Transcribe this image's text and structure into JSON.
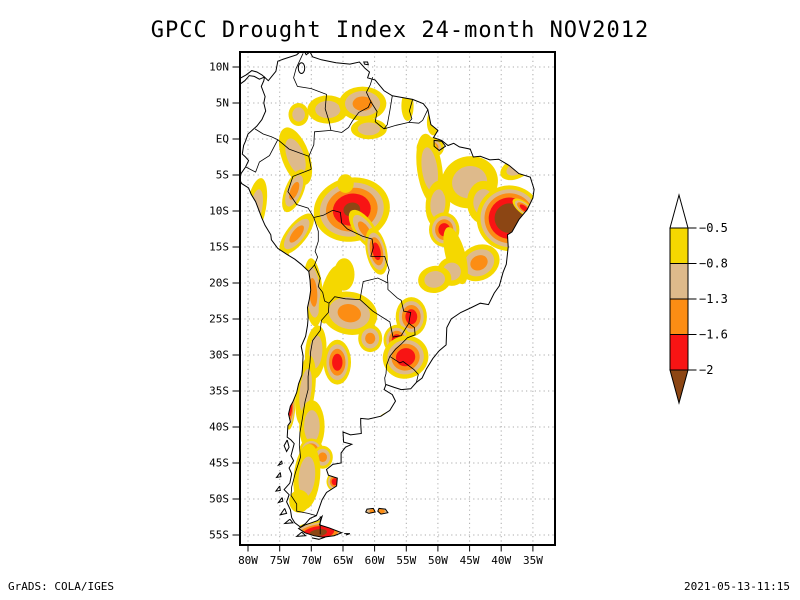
{
  "title": "GPCC Drought Index 24-month NOV2012",
  "footer": {
    "left": "GrADS: COLA/IGES",
    "right": "2021-05-13-11:15"
  },
  "chart_data": {
    "type": "heatmap",
    "subtype": "filled_contour_map",
    "title": "GPCC Drought Index 24-month NOV2012",
    "region": "South America",
    "dataset": "GPCC Drought Index",
    "accumulation": "24-month",
    "valid_date": "NOV2012",
    "lon_range_deg": [
      -81.3,
      -31.5
    ],
    "lat_range_deg": [
      -56.4,
      12.1
    ],
    "grid_interval_deg": 5,
    "grid_on": true,
    "axes": {
      "lat_ticks": [
        {
          "label": "10N",
          "deg": 10
        },
        {
          "label": "5N",
          "deg": 5
        },
        {
          "label": "EQ",
          "deg": 0
        },
        {
          "label": "5S",
          "deg": -5
        },
        {
          "label": "10S",
          "deg": -10
        },
        {
          "label": "15S",
          "deg": -15
        },
        {
          "label": "20S",
          "deg": -20
        },
        {
          "label": "25S",
          "deg": -25
        },
        {
          "label": "30S",
          "deg": -30
        },
        {
          "label": "35S",
          "deg": -35
        },
        {
          "label": "40S",
          "deg": -40
        },
        {
          "label": "45S",
          "deg": -45
        },
        {
          "label": "50S",
          "deg": -50
        },
        {
          "label": "55S",
          "deg": -55
        }
      ],
      "lon_ticks": [
        {
          "label": "80W",
          "deg": -80
        },
        {
          "label": "75W",
          "deg": -75
        },
        {
          "label": "70W",
          "deg": -70
        },
        {
          "label": "65W",
          "deg": -65
        },
        {
          "label": "60W",
          "deg": -60
        },
        {
          "label": "55W",
          "deg": -55
        },
        {
          "label": "50W",
          "deg": -50
        },
        {
          "label": "45W",
          "deg": -45
        },
        {
          "label": "40W",
          "deg": -40
        },
        {
          "label": "35W",
          "deg": -35
        }
      ]
    },
    "legend": {
      "position": "right",
      "levels": [
        -0.5,
        -0.8,
        -1.3,
        -1.6,
        -2
      ],
      "labels": [
        "−0.5",
        "−0.8",
        "−1.3",
        "−1.6",
        "−2"
      ],
      "palette": {
        "white": "#FFFFFF",
        "yellow": "#F5D800",
        "tan": "#DEBA8B",
        "orange": "#FC8D14",
        "red": "#F81414",
        "brown": "#8C4614"
      },
      "bands": [
        {
          "range": "> -0.5",
          "color": "white"
        },
        {
          "range": "-0.5 to -0.8",
          "color": "yellow"
        },
        {
          "range": "-0.8 to -1.3",
          "color": "tan"
        },
        {
          "range": "-1.3 to -1.6",
          "color": "orange"
        },
        {
          "range": "-1.6 to -2",
          "color": "red"
        },
        {
          "range": "< -2",
          "color": "brown"
        }
      ]
    },
    "features": [
      {
        "name": "colombia-east",
        "lon": -72.0,
        "lat": 3.4,
        "level": 2,
        "size": 1.6,
        "rx": 1,
        "ry": 1,
        "rot": 0
      },
      {
        "name": "venezuela-south",
        "lon": -67.4,
        "lat": 4.1,
        "level": 2,
        "size": 2.3,
        "rx": 1.4,
        "ry": 0.85,
        "rot": 0
      },
      {
        "name": "guyana-border",
        "lon": -61.9,
        "lat": 4.9,
        "level": 3,
        "size": 2.5,
        "rx": 1.5,
        "ry": 0.95,
        "rot": 0
      },
      {
        "name": "suriname",
        "lon": -54.8,
        "lat": 4.6,
        "level": 1,
        "size": 1.6,
        "rx": 0.6,
        "ry": 1.3,
        "rot": 0
      },
      {
        "name": "amapa-coast",
        "lon": -50.7,
        "lat": 2.3,
        "level": 1,
        "size": 1.5,
        "rx": 0.7,
        "ry": 1.2,
        "rot": 0
      },
      {
        "name": "roraima",
        "lon": -60.9,
        "lat": 1.4,
        "level": 2,
        "size": 1.9,
        "rx": 1.5,
        "ry": 0.75,
        "rot": 0
      },
      {
        "name": "colombia-peru-border",
        "lon": -72.5,
        "lat": -2.4,
        "level": 2,
        "size": 2.9,
        "rx": 0.75,
        "ry": 1.45,
        "rot": -20
      },
      {
        "name": "peru-coast",
        "lon": -78.7,
        "lat": -9.5,
        "level": 2,
        "size": 2.5,
        "rx": 0.62,
        "ry": 1.65,
        "rot": 10
      },
      {
        "name": "peru-andes-north",
        "lon": -72.7,
        "lat": -7.2,
        "level": 3,
        "size": 2.1,
        "rx": 0.7,
        "ry": 1.5,
        "rot": 22
      },
      {
        "name": "peru-andes-south",
        "lon": -72.3,
        "lat": -13.2,
        "level": 3,
        "size": 2.3,
        "rx": 0.7,
        "ry": 1.5,
        "rot": 38
      },
      {
        "name": "peru-south-coast",
        "lon": -74.2,
        "lat": -16.8,
        "level": 4,
        "size": 1.2,
        "rx": 0.7,
        "ry": 1.1,
        "rot": 0
      },
      {
        "name": "rondonia-main",
        "lon": -63.6,
        "lat": -9.8,
        "level": 5,
        "size": 5.4,
        "rx": 1.12,
        "ry": 0.82,
        "rot": -12,
        "fr": [
          1,
          0.84,
          0.68,
          0.5,
          0.22
        ]
      },
      {
        "name": "rondonia-bridge",
        "lon": -61.6,
        "lat": -12.6,
        "level": 3,
        "size": 2.3,
        "rx": 0.7,
        "ry": 1.4,
        "rot": -35
      },
      {
        "name": "bolivia-arm",
        "lon": -59.7,
        "lat": -15.6,
        "level": 4,
        "size": 2.2,
        "rx": 0.75,
        "ry": 1.5,
        "rot": -12
      },
      {
        "name": "amazonas-small",
        "lon": -64.6,
        "lat": -6.2,
        "level": 1,
        "size": 1.3,
        "rx": 1,
        "ry": 1,
        "rot": 0
      },
      {
        "name": "amazon-mouth",
        "lon": -51.2,
        "lat": -1.2,
        "level": 4,
        "size": 1.8,
        "rx": 1.2,
        "ry": 0.8,
        "rot": 0
      },
      {
        "name": "para-tan",
        "lon": -51.3,
        "lat": -4.2,
        "level": 2,
        "size": 3.2,
        "rx": 0.62,
        "ry": 1.55,
        "rot": -8
      },
      {
        "name": "para-south",
        "lon": -50.0,
        "lat": -9.0,
        "level": 2,
        "size": 2.4,
        "rx": 0.8,
        "ry": 1.35,
        "rot": 5
      },
      {
        "name": "tocantins-red",
        "lon": -49.0,
        "lat": -12.6,
        "level": 4,
        "size": 2.4,
        "rx": 1,
        "ry": 1,
        "rot": 0
      },
      {
        "name": "maranhao",
        "lon": -45.0,
        "lat": -6.0,
        "level": 2,
        "size": 3.6,
        "rx": 1.25,
        "ry": 1.0,
        "rot": -15
      },
      {
        "name": "piaui",
        "lon": -42.8,
        "lat": -8.8,
        "level": 2,
        "size": 2.6,
        "rx": 1.0,
        "ry": 1.15,
        "rot": 0
      },
      {
        "name": "ceara-coast",
        "lon": -37.6,
        "lat": -4.1,
        "level": 2,
        "size": 2.0,
        "rx": 1.35,
        "ry": 0.7,
        "rot": -25
      },
      {
        "name": "ne-brazil-main",
        "lon": -38.7,
        "lat": -11.0,
        "level": 5,
        "size": 4.8,
        "rx": 1.08,
        "ry": 0.95,
        "rot": 6,
        "fr": [
          1,
          0.88,
          0.76,
          0.63,
          0.45
        ]
      },
      {
        "name": "ne-coast-spur",
        "lon": -36.4,
        "lat": -9.6,
        "level": 4,
        "size": 1.5,
        "rx": 1.45,
        "ry": 0.55,
        "rot": 38
      },
      {
        "name": "minas",
        "lon": -43.5,
        "lat": -17.2,
        "level": 3,
        "size": 2.7,
        "rx": 1.25,
        "ry": 0.9,
        "rot": -28
      },
      {
        "name": "goias-yellow",
        "lon": -47.2,
        "lat": -16.2,
        "level": 1,
        "size": 2.4,
        "rx": 0.65,
        "ry": 1.7,
        "rot": -15
      },
      {
        "name": "mato-grosso",
        "lon": -47.8,
        "lat": -18.4,
        "level": 2,
        "size": 2.1,
        "rx": 1.1,
        "ry": 0.95,
        "rot": 0
      },
      {
        "name": "pantanal-east",
        "lon": -50.5,
        "lat": -19.5,
        "level": 2,
        "size": 2.2,
        "rx": 1.2,
        "ry": 0.85,
        "rot": -10
      },
      {
        "name": "bolivia-andes-yellow",
        "lon": -64.8,
        "lat": -18.8,
        "level": 1,
        "size": 1.8,
        "rx": 0.9,
        "ry": 1.25,
        "rot": 0
      },
      {
        "name": "n-chile-band",
        "lon": -69.7,
        "lat": -21.3,
        "level": 3,
        "size": 2.5,
        "rx": 0.6,
        "ry": 1.9,
        "rot": -4
      },
      {
        "name": "andes-yellow-bridge",
        "lon": -66.9,
        "lat": -21.6,
        "level": 1,
        "size": 2.3,
        "rx": 0.7,
        "ry": 1.8,
        "rot": 14
      },
      {
        "name": "nw-argentina",
        "lon": -64.0,
        "lat": -24.2,
        "level": 3,
        "size": 3.3,
        "rx": 1.35,
        "ry": 0.9,
        "rot": 12
      },
      {
        "name": "chaco-orange",
        "lon": -60.7,
        "lat": -27.7,
        "level": 3,
        "size": 1.9,
        "rx": 1,
        "ry": 1,
        "rot": 0
      },
      {
        "name": "parana-red",
        "lon": -54.2,
        "lat": -24.7,
        "level": 4,
        "size": 2.6,
        "rx": 0.95,
        "ry": 1.05,
        "rot": 0
      },
      {
        "name": "corrientes-red",
        "lon": -56.5,
        "lat": -27.9,
        "level": 4,
        "size": 2.1,
        "rx": 1,
        "ry": 1,
        "rot": 0
      },
      {
        "name": "rio-grande-red",
        "lon": -55.1,
        "lat": -30.3,
        "level": 4,
        "size": 3.3,
        "rx": 1.1,
        "ry": 0.9,
        "rot": -18,
        "fr": [
          1,
          0.8,
          0.62,
          0.42
        ]
      },
      {
        "name": "san-juan-red",
        "lon": -65.9,
        "lat": -31.0,
        "level": 4,
        "size": 2.7,
        "rx": 0.8,
        "ry": 1.15,
        "rot": 0
      },
      {
        "name": "mendoza-tan",
        "lon": -69.3,
        "lat": -29.6,
        "level": 2,
        "size": 2.4,
        "rx": 0.7,
        "ry": 1.55,
        "rot": 5
      },
      {
        "name": "chile-central",
        "lon": -70.9,
        "lat": -34.9,
        "level": 2,
        "size": 2.7,
        "rx": 0.55,
        "ry": 1.8,
        "rot": 7
      },
      {
        "name": "chile-coast-red",
        "lon": -73.3,
        "lat": -37.4,
        "level": 4,
        "size": 1.8,
        "rx": 0.42,
        "ry": 1.65,
        "rot": 4
      },
      {
        "name": "neuquen-tan",
        "lon": -69.9,
        "lat": -39.9,
        "level": 2,
        "size": 2.5,
        "rx": 0.8,
        "ry": 1.45,
        "rot": 0
      },
      {
        "name": "buenosaires-coast",
        "lon": -58.0,
        "lat": -39.0,
        "level": 2,
        "size": 1.7,
        "rx": 1.3,
        "ry": 0.6,
        "rot": -30
      },
      {
        "name": "chubut-red",
        "lon": -70.0,
        "lat": -43.3,
        "level": 4,
        "size": 1.9,
        "rx": 1.0,
        "ry": 0.9,
        "rot": 0
      },
      {
        "name": "chubut-orange-east",
        "lon": -68.2,
        "lat": -44.2,
        "level": 3,
        "size": 1.6,
        "rx": 1,
        "ry": 1,
        "rot": 0
      },
      {
        "name": "patagonia-coast-red",
        "lon": -66.3,
        "lat": -47.6,
        "level": 4,
        "size": 1.3,
        "rx": 1,
        "ry": 1,
        "rot": 0
      },
      {
        "name": "santa-cruz-tan",
        "lon": -70.7,
        "lat": -46.9,
        "level": 2,
        "size": 2.6,
        "rx": 0.8,
        "ry": 1.75,
        "rot": 5
      },
      {
        "name": "s-patagonia-yellow",
        "lon": -71.9,
        "lat": -50.3,
        "level": 1,
        "size": 1.6,
        "rx": 1,
        "ry": 1,
        "rot": 0
      },
      {
        "name": "falklands-orange",
        "lon": -59.6,
        "lat": -51.7,
        "level": 3,
        "size": 1.6,
        "rx": 1.8,
        "ry": 0.6,
        "rot": 0
      },
      {
        "name": "tierra-del-fuego",
        "lon": -68.9,
        "lat": -54.7,
        "level": 5,
        "size": 2.7,
        "rx": 1.7,
        "ry": 0.62,
        "rot": -8,
        "fr": [
          1,
          0.85,
          0.7,
          0.55,
          0.3
        ]
      }
    ]
  }
}
